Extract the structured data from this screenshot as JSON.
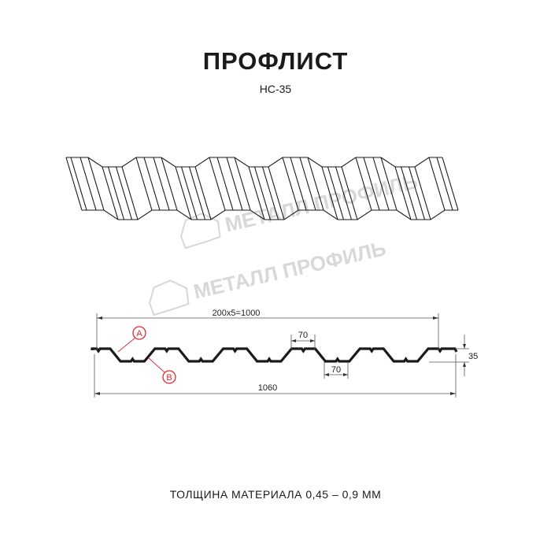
{
  "header": {
    "title": "ПРОФЛИСТ",
    "model": "НС-35"
  },
  "watermark": {
    "text": "МЕТАЛЛ ПРОФИЛЬ",
    "color": "#d8d8d8"
  },
  "drawing": {
    "pitch_dimension": "200x5=1000",
    "top_flat_dimension": "70",
    "bottom_flat_dimension": "70",
    "height_dimension": "35",
    "total_width_dimension": "1060",
    "marker_a": "A",
    "marker_b": "B",
    "marker_color": "#e0262b",
    "line_color": "#1a1a1a"
  },
  "footer": {
    "thickness_text": "ТОЛЩИНА МАТЕРИАЛА 0,45 – 0,9 ММ"
  }
}
